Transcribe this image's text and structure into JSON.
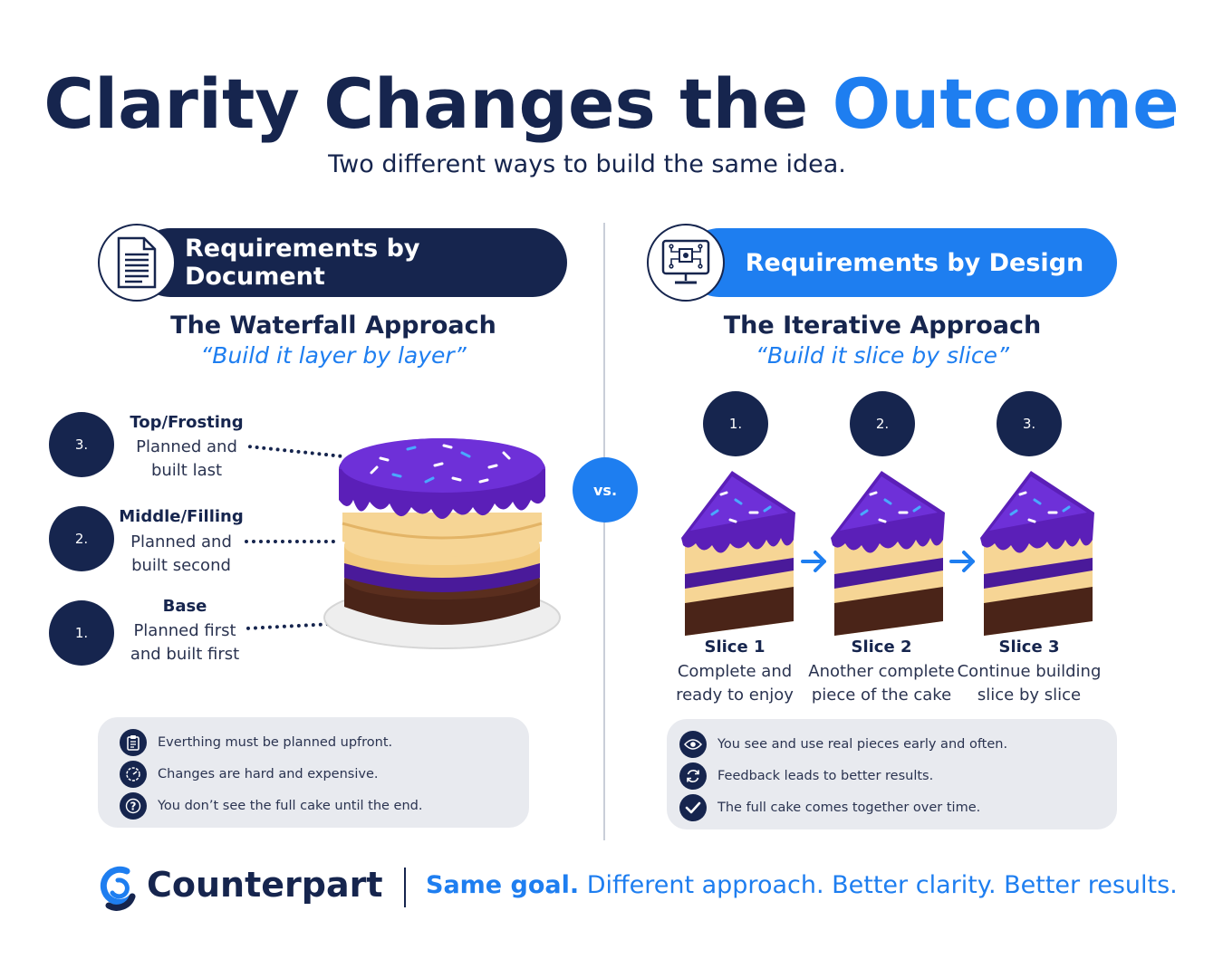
{
  "title": {
    "main": "Clarity Changes the",
    "accent": "Outcome"
  },
  "subtitle": "Two different ways to build the same idea.",
  "vs_label": "vs.",
  "left": {
    "header": "Requirements by Document",
    "icon": "document-icon",
    "approach": "The Waterfall Approach",
    "quote": "“Build it layer by layer”",
    "layers": [
      {
        "number": "3.",
        "name": "Top/Frosting",
        "desc_line1": "Planned and",
        "desc_line2": "built last"
      },
      {
        "number": "2.",
        "name": "Middle/Filling",
        "desc_line1": "Planned and",
        "desc_line2": "built second"
      },
      {
        "number": "1.",
        "name": "Base",
        "desc_line1": "Planned first",
        "desc_line2": "and built first"
      }
    ],
    "bullets": [
      {
        "icon": "clipboard-icon",
        "text": "Everthing must be planned upfront."
      },
      {
        "icon": "gauge-icon",
        "text": "Changes are hard and expensive."
      },
      {
        "icon": "question-icon",
        "text": "You don’t see the full cake until the end."
      }
    ]
  },
  "right": {
    "header": "Requirements by Design",
    "icon": "monitor-icon",
    "approach": "The Iterative Approach",
    "quote": "“Build it slice by slice”",
    "slices": [
      {
        "number": "1.",
        "name": "Slice 1",
        "desc_line1": "Complete and",
        "desc_line2": "ready to enjoy"
      },
      {
        "number": "2.",
        "name": "Slice 2",
        "desc_line1": "Another complete",
        "desc_line2": "piece of the cake"
      },
      {
        "number": "3.",
        "name": "Slice 3",
        "desc_line1": "Continue building",
        "desc_line2": "slice by slice"
      }
    ],
    "bullets": [
      {
        "icon": "eye-icon",
        "text": "You see and use real pieces early and often."
      },
      {
        "icon": "refresh-icon",
        "text": "Feedback leads to better results."
      },
      {
        "icon": "checkmark-icon",
        "text": "The full cake comes together over time."
      }
    ]
  },
  "footer": {
    "brand": "Counterpart",
    "tagline_bold": "Same goal.",
    "tagline_rest": " Different approach. Better clarity. Better results."
  },
  "colors": {
    "navy": "#16254e",
    "blue": "#1e7ef0",
    "purple": "#5b1fb8",
    "sponge": "#f6d595",
    "chocolate": "#4a2418"
  }
}
